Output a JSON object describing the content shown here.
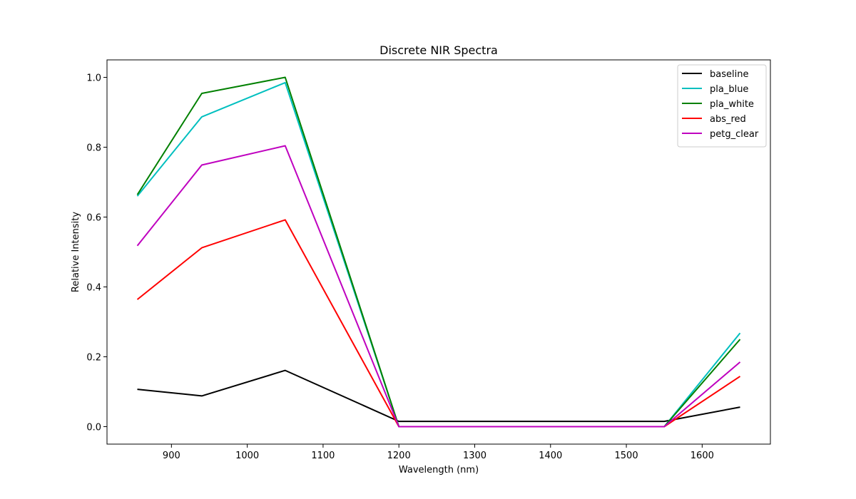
{
  "chart_data": {
    "type": "line",
    "title": "Discrete NIR Spectra",
    "xlabel": "Wavelength (nm)",
    "ylabel": "Relative Intensity",
    "xlim": [
      815,
      1690
    ],
    "ylim": [
      -0.05,
      1.05
    ],
    "xticks": [
      900,
      1000,
      1100,
      1200,
      1300,
      1400,
      1500,
      1600
    ],
    "yticks": [
      0.0,
      0.2,
      0.4,
      0.6,
      0.8,
      1.0
    ],
    "ytick_labels": [
      "0.0",
      "0.2",
      "0.4",
      "0.6",
      "0.8",
      "1.0"
    ],
    "grid": false,
    "legend_position": "top-right",
    "x": [
      855,
      940,
      1050,
      1200,
      1550,
      1650
    ],
    "series": [
      {
        "name": "baseline",
        "color": "#000000",
        "values": [
          0.107,
          0.088,
          0.161,
          0.015,
          0.015,
          0.056
        ]
      },
      {
        "name": "pla_blue",
        "color": "#00bfbf",
        "values": [
          0.66,
          0.887,
          0.985,
          0.0,
          0.0,
          0.268
        ]
      },
      {
        "name": "pla_white",
        "color": "#008000",
        "values": [
          0.664,
          0.954,
          1.0,
          0.0,
          0.0,
          0.25
        ]
      },
      {
        "name": "abs_red",
        "color": "#ff0000",
        "values": [
          0.364,
          0.512,
          0.592,
          0.0,
          0.0,
          0.144
        ]
      },
      {
        "name": "petg_clear",
        "color": "#bf00bf",
        "values": [
          0.518,
          0.749,
          0.804,
          0.0,
          0.0,
          0.185
        ]
      }
    ]
  }
}
